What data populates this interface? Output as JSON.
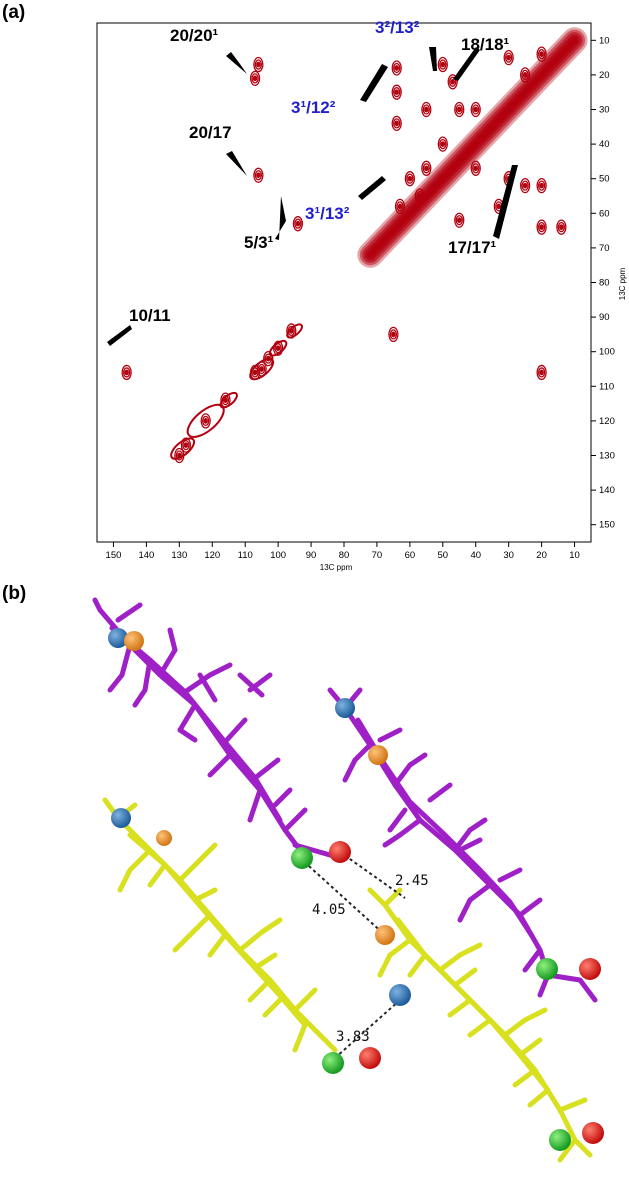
{
  "panel_a_label": "(a)",
  "panel_b_label": "(b)",
  "chart_data": {
    "type": "heatmap",
    "title": "",
    "xlabel": "13C ppm",
    "ylabel": "13C ppm",
    "xlim": [
      155,
      5
    ],
    "ylim": [
      155,
      5
    ],
    "x_ticks": [
      150,
      140,
      130,
      120,
      110,
      100,
      90,
      80,
      70,
      60,
      50,
      40,
      30,
      20,
      10
    ],
    "y_ticks": [
      10,
      20,
      30,
      40,
      50,
      60,
      70,
      80,
      90,
      100,
      110,
      120,
      130,
      140,
      150
    ],
    "contour_color": "#b3000f",
    "diagonal": [
      {
        "x": 72,
        "y": 72
      },
      {
        "x": 10,
        "y": 10
      }
    ],
    "peaks": [
      {
        "x": 106,
        "y": 17
      },
      {
        "x": 107,
        "y": 21
      },
      {
        "x": 106,
        "y": 49
      },
      {
        "x": 94,
        "y": 63
      },
      {
        "x": 146,
        "y": 106
      },
      {
        "x": 65,
        "y": 95
      },
      {
        "x": 20,
        "y": 106
      },
      {
        "x": 20,
        "y": 64
      },
      {
        "x": 14,
        "y": 64
      },
      {
        "x": 96,
        "y": 94
      },
      {
        "x": 100,
        "y": 99
      },
      {
        "x": 103,
        "y": 102
      },
      {
        "x": 107,
        "y": 106
      },
      {
        "x": 105,
        "y": 105
      },
      {
        "x": 116,
        "y": 114
      },
      {
        "x": 122,
        "y": 120
      },
      {
        "x": 128,
        "y": 127
      },
      {
        "x": 130,
        "y": 130
      },
      {
        "x": 64,
        "y": 18
      },
      {
        "x": 64,
        "y": 25
      },
      {
        "x": 64,
        "y": 34
      },
      {
        "x": 63,
        "y": 58
      },
      {
        "x": 50,
        "y": 17
      },
      {
        "x": 47,
        "y": 22
      },
      {
        "x": 45,
        "y": 30
      },
      {
        "x": 50,
        "y": 40
      },
      {
        "x": 55,
        "y": 30
      },
      {
        "x": 40,
        "y": 30
      },
      {
        "x": 40,
        "y": 47
      },
      {
        "x": 30,
        "y": 50
      },
      {
        "x": 25,
        "y": 52
      },
      {
        "x": 33,
        "y": 58
      },
      {
        "x": 20,
        "y": 52
      },
      {
        "x": 55,
        "y": 47
      },
      {
        "x": 57,
        "y": 55
      },
      {
        "x": 60,
        "y": 50
      },
      {
        "x": 45,
        "y": 62
      },
      {
        "x": 30,
        "y": 15
      },
      {
        "x": 25,
        "y": 20
      },
      {
        "x": 20,
        "y": 14
      }
    ],
    "annotations": [
      {
        "text": "20/20¹",
        "color": "black"
      },
      {
        "text": "20/17",
        "color": "black"
      },
      {
        "text": "5/3¹",
        "color": "black"
      },
      {
        "text": "10/11",
        "color": "black"
      },
      {
        "text": "3²/13²",
        "color": "blue"
      },
      {
        "text": "3¹/12²",
        "color": "blue"
      },
      {
        "text": "3¹/13²",
        "color": "blue"
      },
      {
        "text": "18/18¹",
        "color": "black"
      },
      {
        "text": "17/17¹",
        "color": "black"
      }
    ]
  },
  "panel_b": {
    "distances": [
      "2.45",
      "4.05",
      "3.83"
    ],
    "colors": {
      "magenta": "#a020c8",
      "yellow": "#d8e020",
      "blue": "#2a6fb0",
      "orange": "#e8902a",
      "green": "#22b830",
      "red": "#e01818"
    }
  }
}
